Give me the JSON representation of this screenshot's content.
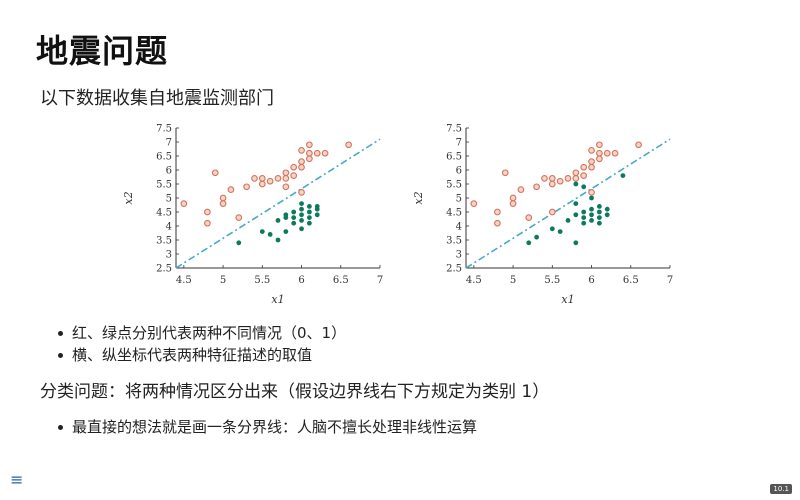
{
  "page": {
    "title": "地震问题",
    "subtitle": "以下数据收集自地震监测部门",
    "bullets_top": [
      "红、绿点分别代表两种不同情况（0、1）",
      "横、纵坐标代表两种特征描述的取值"
    ],
    "paragraph": "分类问题：将两种情况区分出来（假设边界线右下方规定为类别 1）",
    "bullets_bottom": [
      "最直接的想法就是画一条分界线：人脑不擅长处理非线性运算"
    ],
    "nav_icon": "menu-icon",
    "page_number": "10.1"
  },
  "chart_data": [
    {
      "type": "scatter",
      "xlabel": "x1",
      "ylabel": "x2",
      "xlim": [
        4.4,
        7.0
      ],
      "ylim": [
        2.5,
        7.5
      ],
      "xticks": [
        "4.5",
        "5",
        "5.5",
        "6",
        "6.5",
        "7"
      ],
      "yticks": [
        "2.5",
        "3",
        "3.5",
        "4",
        "4.5",
        "5",
        "5.5",
        "6",
        "6.5",
        "7",
        "7.5"
      ],
      "colors": {
        "class0": "#d4735a",
        "class1": "#0c7a5c",
        "boundary": "#4aa8c8"
      },
      "boundary": {
        "from": [
          4.4,
          2.5
        ],
        "to": [
          7.0,
          7.1
        ]
      },
      "series": [
        {
          "class": 0,
          "points": [
            [
              4.5,
              4.8
            ],
            [
              4.8,
              4.5
            ],
            [
              4.8,
              4.1
            ],
            [
              4.9,
              5.9
            ],
            [
              5.0,
              5.0
            ],
            [
              5.0,
              4.8
            ],
            [
              5.1,
              5.3
            ],
            [
              5.2,
              4.3
            ],
            [
              5.3,
              5.4
            ],
            [
              5.4,
              5.7
            ],
            [
              5.5,
              5.7
            ],
            [
              5.5,
              5.5
            ],
            [
              5.6,
              5.6
            ],
            [
              5.7,
              5.7
            ],
            [
              5.8,
              5.9
            ],
            [
              5.8,
              5.7
            ],
            [
              5.8,
              5.4
            ],
            [
              5.9,
              6.1
            ],
            [
              5.9,
              5.8
            ],
            [
              6.0,
              6.7
            ],
            [
              6.0,
              6.3
            ],
            [
              6.0,
              6.1
            ],
            [
              6.1,
              6.9
            ],
            [
              6.1,
              6.6
            ],
            [
              6.1,
              6.4
            ],
            [
              6.2,
              6.6
            ],
            [
              6.3,
              6.6
            ],
            [
              6.0,
              5.2
            ],
            [
              6.6,
              6.9
            ]
          ]
        },
        {
          "class": 1,
          "points": [
            [
              5.2,
              3.4
            ],
            [
              5.5,
              3.8
            ],
            [
              5.6,
              3.7
            ],
            [
              5.7,
              4.2
            ],
            [
              5.7,
              3.5
            ],
            [
              5.8,
              4.4
            ],
            [
              5.8,
              4.3
            ],
            [
              5.8,
              3.8
            ],
            [
              5.9,
              4.5
            ],
            [
              5.9,
              4.3
            ],
            [
              5.9,
              4.1
            ],
            [
              6.0,
              4.6
            ],
            [
              6.0,
              4.4
            ],
            [
              6.0,
              4.2
            ],
            [
              6.0,
              3.9
            ],
            [
              6.1,
              4.7
            ],
            [
              6.1,
              4.5
            ],
            [
              6.1,
              4.3
            ],
            [
              6.1,
              4.1
            ],
            [
              6.2,
              4.6
            ],
            [
              6.2,
              4.4
            ],
            [
              6.2,
              4.7
            ],
            [
              6.0,
              4.8
            ]
          ]
        }
      ]
    },
    {
      "type": "scatter",
      "xlabel": "x1",
      "ylabel": "x2",
      "xlim": [
        4.4,
        7.0
      ],
      "ylim": [
        2.5,
        7.5
      ],
      "xticks": [
        "4.5",
        "5",
        "5.5",
        "6",
        "6.5",
        "7"
      ],
      "yticks": [
        "2.5",
        "3",
        "3.5",
        "4",
        "4.5",
        "5",
        "5.5",
        "6",
        "6.5",
        "7",
        "7.5"
      ],
      "colors": {
        "class0": "#d4735a",
        "class1": "#0c7a5c",
        "boundary": "#4aa8c8"
      },
      "boundary": {
        "from": [
          4.4,
          2.5
        ],
        "to": [
          7.0,
          7.1
        ]
      },
      "series": [
        {
          "class": 0,
          "points": [
            [
              4.5,
              4.8
            ],
            [
              4.8,
              4.5
            ],
            [
              4.8,
              4.1
            ],
            [
              4.9,
              5.9
            ],
            [
              5.0,
              5.0
            ],
            [
              5.0,
              4.8
            ],
            [
              5.1,
              5.3
            ],
            [
              5.2,
              4.3
            ],
            [
              5.3,
              5.4
            ],
            [
              5.4,
              5.7
            ],
            [
              5.5,
              5.7
            ],
            [
              5.5,
              5.5
            ],
            [
              5.6,
              5.6
            ],
            [
              5.7,
              5.7
            ],
            [
              5.8,
              5.9
            ],
            [
              5.8,
              5.7
            ],
            [
              5.9,
              6.1
            ],
            [
              5.9,
              5.8
            ],
            [
              6.0,
              6.7
            ],
            [
              6.0,
              6.3
            ],
            [
              6.0,
              6.1
            ],
            [
              6.1,
              6.9
            ],
            [
              6.1,
              6.6
            ],
            [
              6.1,
              6.4
            ],
            [
              6.2,
              6.6
            ],
            [
              6.3,
              6.6
            ],
            [
              6.0,
              5.2
            ],
            [
              6.6,
              6.9
            ],
            [
              5.5,
              4.5
            ]
          ]
        },
        {
          "class": 1,
          "points": [
            [
              5.2,
              3.4
            ],
            [
              5.3,
              3.6
            ],
            [
              5.5,
              3.9
            ],
            [
              5.6,
              3.8
            ],
            [
              5.7,
              4.2
            ],
            [
              5.8,
              3.4
            ],
            [
              5.8,
              4.4
            ],
            [
              5.8,
              4.8
            ],
            [
              5.8,
              5.5
            ],
            [
              5.9,
              4.5
            ],
            [
              5.9,
              4.3
            ],
            [
              5.9,
              4.1
            ],
            [
              6.0,
              4.6
            ],
            [
              6.0,
              4.4
            ],
            [
              6.0,
              4.2
            ],
            [
              6.0,
              5.0
            ],
            [
              6.1,
              4.7
            ],
            [
              6.1,
              4.5
            ],
            [
              6.1,
              4.3
            ],
            [
              6.1,
              4.1
            ],
            [
              6.2,
              4.6
            ],
            [
              6.2,
              4.4
            ],
            [
              6.4,
              5.8
            ],
            [
              5.9,
              5.4
            ]
          ]
        }
      ]
    }
  ]
}
